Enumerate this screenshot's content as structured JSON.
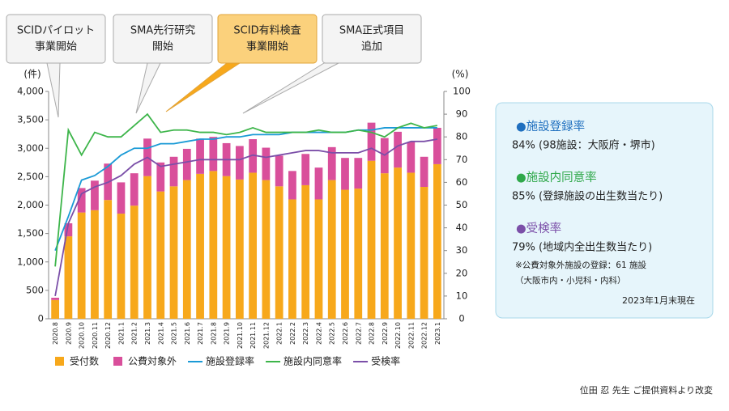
{
  "chart_data": {
    "type": "bar",
    "stacked": true,
    "y_label": "(件)",
    "y2_label": "(%)",
    "categories": [
      "2020.8",
      "2020.9",
      "2020.10",
      "2020.11",
      "2020.12",
      "2021.1",
      "2021.2",
      "2021.3",
      "2021.4",
      "2021.5",
      "2021.6",
      "2021.7",
      "2021.8",
      "2021.9",
      "2021.10",
      "2021.11",
      "2021.12",
      "2022.1",
      "2022.2",
      "2022.3",
      "2022.4",
      "2022.5",
      "2022.6",
      "2022.7",
      "2022.8",
      "2022.9",
      "2022.10",
      "2022.11",
      "2022.12",
      "2023.1"
    ],
    "series": [
      {
        "name": "受付数",
        "type": "bar",
        "color": "#f7a81b",
        "values": [
          330,
          1450,
          1870,
          1910,
          2090,
          1850,
          1990,
          2510,
          2240,
          2330,
          2440,
          2550,
          2600,
          2510,
          2450,
          2570,
          2440,
          2330,
          2100,
          2350,
          2100,
          2440,
          2270,
          2290,
          2780,
          2560,
          2660,
          2570,
          2320,
          2720
        ]
      },
      {
        "name": "公費対象外",
        "type": "bar",
        "color": "#d94f9b",
        "values": [
          40,
          230,
          430,
          520,
          640,
          550,
          570,
          660,
          510,
          520,
          550,
          620,
          600,
          580,
          590,
          590,
          570,
          540,
          500,
          550,
          560,
          580,
          560,
          540,
          670,
          620,
          630,
          540,
          530,
          640
        ]
      },
      {
        "name": "施設登録率",
        "type": "line",
        "axis": "y2",
        "color": "#1a9ad6",
        "values": [
          30,
          45,
          61,
          63,
          67,
          72,
          75,
          75,
          77,
          77,
          78,
          79,
          79,
          80,
          80,
          81,
          81,
          81,
          82,
          82,
          82,
          82,
          82,
          83,
          83,
          84,
          84,
          84,
          84,
          84
        ]
      },
      {
        "name": "施設内同意率",
        "type": "line",
        "axis": "y2",
        "color": "#3db54a",
        "values": [
          23,
          83,
          72,
          82,
          80,
          80,
          85,
          90,
          82,
          83,
          83,
          82,
          82,
          81,
          82,
          84,
          82,
          82,
          82,
          82,
          83,
          82,
          82,
          83,
          82,
          80,
          84,
          86,
          84,
          85
        ]
      },
      {
        "name": "受検率",
        "type": "line",
        "axis": "y2",
        "color": "#7b4fa8",
        "values": [
          10,
          42,
          55,
          58,
          60,
          63,
          68,
          71,
          67,
          68,
          69,
          70,
          70,
          70,
          70,
          72,
          71,
          72,
          73,
          74,
          74,
          73,
          73,
          73,
          75,
          72,
          76,
          78,
          78,
          79
        ]
      }
    ],
    "ylim": [
      0,
      4000
    ],
    "yticks": [
      0,
      500,
      {
        "value": 1000,
        "label": "1,000"
      },
      {
        "value": 1500,
        "label": "1,500"
      },
      {
        "value": 2000,
        "label": "2,000"
      },
      {
        "value": 2500,
        "label": "2,500"
      },
      {
        "value": 3000,
        "label": "3,000"
      },
      {
        "value": 3500,
        "label": "3,500"
      },
      {
        "value": 4000,
        "label": "4,000"
      }
    ],
    "y2lim": [
      0,
      100
    ],
    "y2ticks": [
      0,
      10,
      20,
      30,
      40,
      50,
      60,
      70,
      80,
      90,
      100
    ],
    "annotations": [
      {
        "lines": [
          "SCIDパイロット",
          "事業開始"
        ]
      },
      {
        "lines": [
          "SMA先行研究",
          "開始"
        ]
      },
      {
        "lines": [
          "SCID有料検査",
          "事業開始"
        ]
      },
      {
        "lines": [
          "SMA正式項目",
          "追加"
        ]
      }
    ],
    "panel": {
      "items": [
        {
          "title": "●施設登録率",
          "text": "84% (98施設：大阪府・堺市)",
          "color": "#1f6fbf"
        },
        {
          "title": "●施設内同意率",
          "text": "85% (登録施設の出生数当たり)",
          "color": "#2fa84a"
        },
        {
          "title": "●受検率",
          "text": "79% (地域内全出生数当たり)",
          "color": "#7b4fa8"
        }
      ],
      "note": [
        "※公費対象外施設の登録：61 施設",
        "（大阪市内・小児科・内科）"
      ],
      "date": "2023年1月末現在"
    },
    "source": "位田 忍 先生 ご提供資料より改変"
  }
}
